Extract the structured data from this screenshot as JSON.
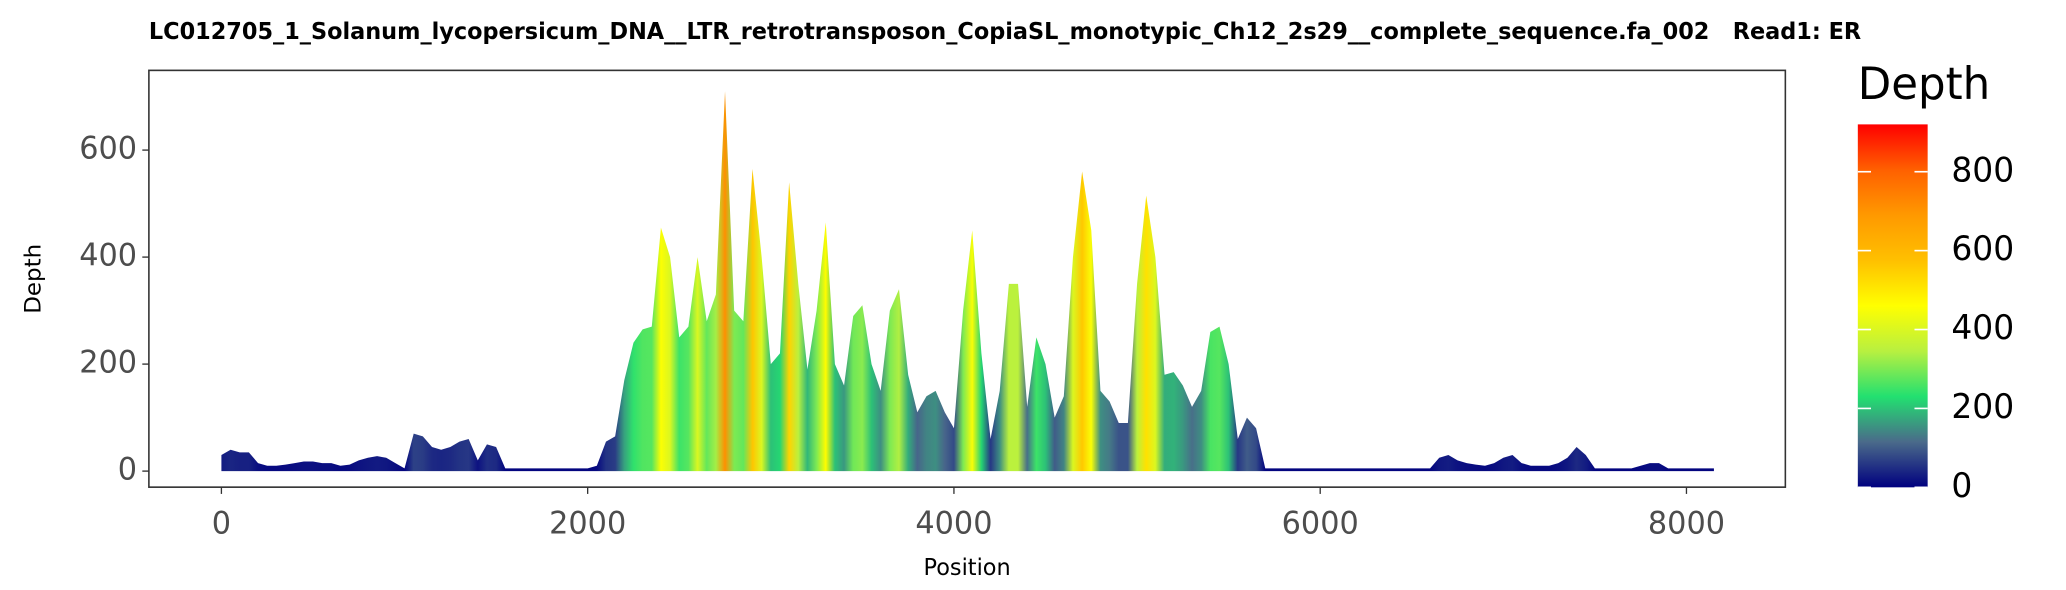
{
  "chart_data": {
    "type": "area",
    "title": "LC012705_1_Solanum_lycopersicum_DNA__LTR_retrotransposon_CopiaSL_monotypic_Ch12_2s29__complete_sequence.fa_002   Read1: ER",
    "x_label": "Position",
    "y_label": "Depth",
    "x": [
      0,
      50,
      100,
      150,
      200,
      250,
      300,
      350,
      400,
      450,
      500,
      550,
      600,
      650,
      700,
      750,
      800,
      850,
      900,
      950,
      1000,
      1050,
      1100,
      1150,
      1200,
      1250,
      1300,
      1350,
      1400,
      1450,
      1500,
      1550,
      1600,
      1650,
      1700,
      1750,
      1800,
      1850,
      1900,
      1950,
      2000,
      2050,
      2100,
      2150,
      2200,
      2250,
      2300,
      2350,
      2400,
      2450,
      2500,
      2550,
      2600,
      2650,
      2700,
      2750,
      2800,
      2850,
      2900,
      2950,
      3000,
      3050,
      3100,
      3150,
      3200,
      3250,
      3300,
      3350,
      3400,
      3450,
      3500,
      3550,
      3600,
      3650,
      3700,
      3750,
      3800,
      3850,
      3900,
      3950,
      4000,
      4050,
      4100,
      4150,
      4200,
      4250,
      4300,
      4350,
      4400,
      4450,
      4500,
      4550,
      4600,
      4650,
      4700,
      4750,
      4800,
      4850,
      4900,
      4950,
      5000,
      5050,
      5100,
      5150,
      5200,
      5250,
      5300,
      5350,
      5400,
      5450,
      5500,
      5550,
      5600,
      5650,
      5700,
      5750,
      5800,
      5850,
      5900,
      5950,
      6000,
      6050,
      6100,
      6150,
      6200,
      6250,
      6300,
      6350,
      6400,
      6450,
      6500,
      6550,
      6600,
      6650,
      6700,
      6750,
      6800,
      6850,
      6900,
      6950,
      7000,
      7050,
      7100,
      7150,
      7200,
      7250,
      7300,
      7350,
      7400,
      7450,
      7500,
      7550,
      7600,
      7650,
      7700,
      7750,
      7800,
      7850,
      7900,
      7950,
      8000,
      8050,
      8100,
      8150
    ],
    "values": [
      30,
      40,
      35,
      35,
      15,
      10,
      10,
      12,
      15,
      18,
      18,
      15,
      15,
      10,
      12,
      20,
      25,
      28,
      25,
      15,
      5,
      70,
      65,
      45,
      40,
      45,
      55,
      60,
      20,
      50,
      45,
      5,
      5,
      5,
      5,
      5,
      5,
      5,
      5,
      5,
      5,
      10,
      55,
      65,
      170,
      240,
      265,
      270,
      455,
      400,
      250,
      270,
      400,
      280,
      330,
      710,
      300,
      280,
      565,
      400,
      200,
      220,
      540,
      350,
      190,
      300,
      465,
      200,
      160,
      290,
      310,
      200,
      150,
      300,
      340,
      180,
      110,
      140,
      150,
      110,
      80,
      300,
      450,
      220,
      60,
      150,
      350,
      350,
      120,
      250,
      200,
      100,
      140,
      400,
      560,
      450,
      150,
      130,
      90,
      90,
      350,
      515,
      400,
      180,
      185,
      160,
      120,
      150,
      260,
      270,
      200,
      60,
      100,
      80,
      5,
      5,
      5,
      5,
      5,
      5,
      5,
      5,
      5,
      5,
      5,
      5,
      5,
      5,
      5,
      5,
      5,
      5,
      5,
      25,
      30,
      20,
      15,
      12,
      10,
      15,
      25,
      30,
      15,
      10,
      10,
      10,
      15,
      25,
      45,
      30,
      5,
      5,
      5,
      5,
      5,
      10,
      15,
      15,
      5,
      5,
      5,
      5,
      5,
      5
    ],
    "xlim": [
      -396,
      8540
    ],
    "xticks": [
      0,
      2000,
      4000,
      6000,
      8000
    ],
    "ylim": [
      -30,
      749
    ],
    "yticks": [
      0,
      200,
      400,
      600
    ],
    "grid": false,
    "colorbar": {
      "title": "Depth",
      "lim": [
        0,
        920
      ],
      "ticks": [
        0,
        200,
        400,
        600,
        800
      ],
      "colors": [
        "#00007f",
        "#4a6a8a",
        "#22e070",
        "#b8f040",
        "#ffff00",
        "#ffc000",
        "#ff9900",
        "#ff6000",
        "#ff0000"
      ]
    }
  }
}
